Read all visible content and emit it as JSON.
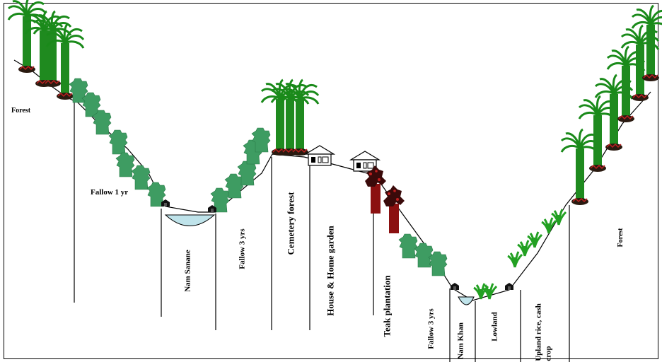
{
  "labels": {
    "forest_left": "Forest",
    "fallow_1yr": "Fallow 1 yr",
    "nam_sanane": "Nam Sanane",
    "fallow_3yrs_a": "Fallow 3 yrs",
    "cemetery_forest": "Cemetery forest",
    "house_home_garden": "House & Home garden",
    "teak_plantation": "Teak plantation",
    "fallow_3yrs_b": "Fallow 3 yrs",
    "nam_khan": "Nam Khan",
    "lowland": "Lowland",
    "upland_rice": "Upland rice, cash",
    "upland_rice_2": "crop",
    "forest_right": "Forest"
  },
  "colors": {
    "forest_green": "#1f8a1f",
    "forest_dark": "#0f5e10",
    "fallow_green": "#3e9c62",
    "teak_red": "#8b1010",
    "water": "#bfe3ea",
    "rice_green": "#22a022"
  }
}
